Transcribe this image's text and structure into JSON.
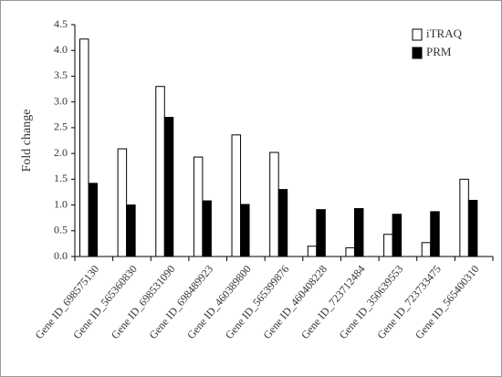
{
  "chart_data": {
    "type": "bar",
    "y_label": "Fold change",
    "categories": [
      "Gene ID_698575130",
      "Gene ID_565360830",
      "Gene ID_698531090",
      "Gene ID_698489923",
      "Gene ID_460389800",
      "Gene ID_565399876",
      "Gene ID_460408228",
      "Gene ID_723712484",
      "Gene ID_350639553",
      "Gene ID_723733475",
      "Gene ID_565400310"
    ],
    "series": [
      {
        "name": "iTRAQ",
        "color": "#ffffff",
        "values": [
          4.22,
          2.09,
          3.3,
          1.93,
          2.36,
          2.02,
          0.2,
          0.17,
          0.43,
          0.27,
          1.5
        ]
      },
      {
        "name": "PRM",
        "color": "#000000",
        "values": [
          1.42,
          1.0,
          2.7,
          1.08,
          1.01,
          1.3,
          0.91,
          0.93,
          0.82,
          0.87,
          1.09
        ]
      }
    ],
    "ylim": [
      0,
      4.5
    ],
    "yticks": [
      {
        "value": 0,
        "label": "0.0"
      },
      0.5,
      {
        "value": 1,
        "label": "1.0"
      },
      1.5,
      {
        "value": 2,
        "label": "2.0"
      },
      2.5,
      {
        "value": 3,
        "label": "3.0"
      },
      3.5,
      {
        "value": 4,
        "label": "4.0"
      },
      4.5
    ],
    "legend": "top-right"
  }
}
